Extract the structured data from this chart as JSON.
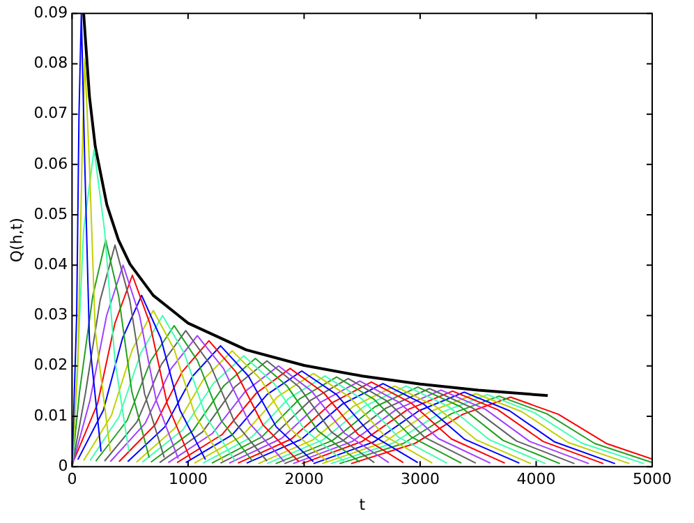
{
  "chart_data": {
    "type": "line",
    "xlabel": "t",
    "ylabel": "Q(h,t)",
    "xlim": [
      0,
      5000
    ],
    "xticks": [
      0,
      1000,
      2000,
      3000,
      4000,
      5000
    ],
    "ylim": [
      0,
      0.09
    ],
    "yticks": [
      0,
      0.01,
      0.02,
      0.03,
      0.04,
      0.05,
      0.06,
      0.07,
      0.08,
      0.09
    ],
    "grid": false,
    "legend": false,
    "marker": "none",
    "line_style": "solid",
    "series": [
      {
        "color": "#0000ff",
        "x": [
          0,
          40,
          60,
          80,
          110,
          150,
          250
        ],
        "values": [
          0,
          0.03,
          0.07,
          0.09,
          0.06,
          0.025,
          0.003
        ]
      },
      {
        "color": "#c0d000",
        "x": [
          0,
          50,
          85,
          110,
          150,
          200,
          330
        ],
        "values": [
          0,
          0.02,
          0.06,
          0.081,
          0.06,
          0.027,
          0.003
        ]
      },
      {
        "color": "#40ffb0",
        "x": [
          0,
          10,
          100,
          190,
          280,
          370,
          490
        ],
        "values": [
          0,
          0.002,
          0.047,
          0.063,
          0.047,
          0.021,
          0.003
        ]
      },
      {
        "color": "#20a020",
        "x": [
          0,
          65,
          178,
          290,
          402,
          515,
          665
        ],
        "values": [
          0,
          0.0149,
          0.0338,
          0.045,
          0.0338,
          0.0149,
          0.0018
        ]
      },
      {
        "color": "#606060",
        "x": [
          0,
          115,
          242,
          370,
          498,
          625,
          795
        ],
        "values": [
          0,
          0.0145,
          0.033,
          0.044,
          0.033,
          0.0145,
          0.0018
        ]
      },
      {
        "color": "#a040ff",
        "x": [
          0,
          155,
          298,
          440,
          582,
          725,
          915
        ],
        "values": [
          0,
          0.0132,
          0.03,
          0.04,
          0.03,
          0.0132,
          0.0016
        ]
      },
      {
        "color": "#ff0000",
        "x": [
          20,
          220,
          370,
          520,
          670,
          820,
          1020
        ],
        "values": [
          0.0015,
          0.0125,
          0.0285,
          0.038,
          0.0285,
          0.0125,
          0.0015
        ]
      },
      {
        "color": "#0000ff",
        "x": [
          50,
          270,
          435,
          600,
          765,
          930,
          1150
        ],
        "values": [
          0.0014,
          0.0112,
          0.0255,
          0.034,
          0.0255,
          0.0112,
          0.0014
        ]
      },
      {
        "color": "#c0d000",
        "x": [
          100,
          340,
          520,
          700,
          880,
          1060,
          1300
        ],
        "values": [
          0.0012,
          0.0102,
          0.0233,
          0.031,
          0.0233,
          0.0102,
          0.0012
        ]
      },
      {
        "color": "#40ffb0",
        "x": [
          155,
          405,
          592,
          780,
          968,
          1155,
          1405
        ],
        "values": [
          0.0012,
          0.0099,
          0.0225,
          0.03,
          0.0225,
          0.0099,
          0.0012
        ]
      },
      {
        "color": "#20a020",
        "x": [
          205,
          475,
          678,
          880,
          1082,
          1285,
          1555
        ],
        "values": [
          0.0011,
          0.0092,
          0.021,
          0.028,
          0.021,
          0.0092,
          0.0011
        ]
      },
      {
        "color": "#606060",
        "x": [
          280,
          560,
          770,
          980,
          1190,
          1400,
          1680
        ],
        "values": [
          0.0011,
          0.0089,
          0.0203,
          0.027,
          0.0203,
          0.0089,
          0.0011
        ]
      },
      {
        "color": "#a040ff",
        "x": [
          330,
          630,
          855,
          1080,
          1305,
          1530,
          1830
        ],
        "values": [
          0.001,
          0.0086,
          0.0195,
          0.026,
          0.0195,
          0.0086,
          0.001
        ]
      },
      {
        "color": "#ff0000",
        "x": [
          405,
          715,
          948,
          1180,
          1412,
          1645,
          1955
        ],
        "values": [
          0.001,
          0.0083,
          0.0188,
          0.025,
          0.0188,
          0.0083,
          0.001
        ]
      },
      {
        "color": "#0000ff",
        "x": [
          480,
          800,
          1040,
          1280,
          1520,
          1760,
          2080
        ],
        "values": [
          0.001,
          0.0079,
          0.018,
          0.024,
          0.018,
          0.0079,
          0.001
        ]
      },
      {
        "color": "#c0d000",
        "x": [
          555,
          885,
          1132,
          1380,
          1628,
          1875,
          2205
        ],
        "values": [
          0.0009,
          0.0076,
          0.0173,
          0.023,
          0.0173,
          0.0076,
          0.0009
        ]
      },
      {
        "color": "#40ffb0",
        "x": [
          605,
          955,
          1218,
          1480,
          1742,
          2005,
          2355
        ],
        "values": [
          0.0009,
          0.0073,
          0.0165,
          0.022,
          0.0165,
          0.0073,
          0.0009
        ]
      },
      {
        "color": "#20a020",
        "x": [
          680,
          1040,
          1310,
          1580,
          1850,
          2120,
          2480
        ],
        "values": [
          0.0009,
          0.0071,
          0.0161,
          0.0215,
          0.0161,
          0.0071,
          0.0009
        ]
      },
      {
        "color": "#606060",
        "x": [
          755,
          1125,
          1402,
          1680,
          1958,
          2235,
          2605
        ],
        "values": [
          0.0008,
          0.0069,
          0.0158,
          0.021,
          0.0158,
          0.0069,
          0.0008
        ]
      },
      {
        "color": "#a040ff",
        "x": [
          830,
          1210,
          1495,
          1780,
          2065,
          2350,
          2730
        ],
        "values": [
          0.0008,
          0.0066,
          0.015,
          0.02,
          0.015,
          0.0066,
          0.0008
        ]
      },
      {
        "color": "#ff0000",
        "x": [
          905,
          1295,
          1588,
          1880,
          2172,
          2465,
          2855
        ],
        "values": [
          0.0008,
          0.0064,
          0.0146,
          0.0195,
          0.0146,
          0.0064,
          0.0008
        ]
      },
      {
        "color": "#0000ff",
        "x": [
          980,
          1380,
          1680,
          1980,
          2280,
          2580,
          2980
        ],
        "values": [
          0.0008,
          0.0063,
          0.0143,
          0.019,
          0.0143,
          0.0063,
          0.0008
        ]
      },
      {
        "color": "#c0d000",
        "x": [
          1055,
          1465,
          1772,
          2080,
          2388,
          2695,
          3105
        ],
        "values": [
          0.0007,
          0.0061,
          0.0139,
          0.0185,
          0.0139,
          0.0061,
          0.0007
        ]
      },
      {
        "color": "#40ffb0",
        "x": [
          1130,
          1550,
          1865,
          2180,
          2495,
          2810,
          3230
        ],
        "values": [
          0.0007,
          0.0059,
          0.0135,
          0.018,
          0.0135,
          0.0059,
          0.0007
        ]
      },
      {
        "color": "#20a020",
        "x": [
          1205,
          1635,
          1958,
          2280,
          2602,
          2925,
          3355
        ],
        "values": [
          0.0007,
          0.0059,
          0.0134,
          0.0178,
          0.0134,
          0.0059,
          0.0007
        ]
      },
      {
        "color": "#606060",
        "x": [
          1280,
          1720,
          2050,
          2380,
          2710,
          3040,
          3480
        ],
        "values": [
          0.0007,
          0.0058,
          0.0131,
          0.0175,
          0.0131,
          0.0058,
          0.0007
        ]
      },
      {
        "color": "#a040ff",
        "x": [
          1355,
          1805,
          2142,
          2480,
          2818,
          3155,
          3605
        ],
        "values": [
          0.0007,
          0.0056,
          0.0128,
          0.017,
          0.0128,
          0.0056,
          0.0007
        ]
      },
      {
        "color": "#ff0000",
        "x": [
          1430,
          1890,
          2235,
          2580,
          2925,
          3270,
          3730
        ],
        "values": [
          0.0007,
          0.0055,
          0.0126,
          0.0168,
          0.0126,
          0.0055,
          0.0007
        ]
      },
      {
        "color": "#0000ff",
        "x": [
          1505,
          1975,
          2328,
          2680,
          3032,
          3385,
          3855
        ],
        "values": [
          0.0007,
          0.0054,
          0.0124,
          0.0165,
          0.0124,
          0.0054,
          0.0007
        ]
      },
      {
        "color": "#c0d000",
        "x": [
          1605,
          2075,
          2428,
          2780,
          3132,
          3485,
          3955
        ],
        "values": [
          0.0006,
          0.0053,
          0.012,
          0.016,
          0.012,
          0.0053,
          0.0006
        ]
      },
      {
        "color": "#40ffb0",
        "x": [
          1680,
          2160,
          2520,
          2880,
          3240,
          3600,
          4080
        ],
        "values": [
          0.0006,
          0.0053,
          0.012,
          0.016,
          0.012,
          0.0053,
          0.0006
        ]
      },
      {
        "color": "#20a020",
        "x": [
          1755,
          2245,
          2612,
          2980,
          3348,
          3715,
          4205
        ],
        "values": [
          0.0006,
          0.0052,
          0.0119,
          0.0158,
          0.0119,
          0.0052,
          0.0006
        ]
      },
      {
        "color": "#606060",
        "x": [
          1830,
          2330,
          2705,
          3080,
          3455,
          3830,
          4330
        ],
        "values": [
          0.0006,
          0.0051,
          0.0116,
          0.0155,
          0.0116,
          0.0051,
          0.0006
        ]
      },
      {
        "color": "#a040ff",
        "x": [
          1905,
          2415,
          2798,
          3180,
          3562,
          3945,
          4455
        ],
        "values": [
          0.0006,
          0.005,
          0.0114,
          0.0152,
          0.0114,
          0.005,
          0.0006
        ]
      },
      {
        "color": "#ff0000",
        "x": [
          1980,
          2500,
          2890,
          3280,
          3670,
          4060,
          4580
        ],
        "values": [
          0.0006,
          0.005,
          0.0113,
          0.015,
          0.0113,
          0.005,
          0.0006
        ]
      },
      {
        "color": "#0000ff",
        "x": [
          2080,
          2600,
          2990,
          3380,
          3770,
          4160,
          4680
        ],
        "values": [
          0.0006,
          0.0049,
          0.0111,
          0.0148,
          0.0111,
          0.0049,
          0.0006
        ]
      },
      {
        "color": "#c0d000",
        "x": [
          2155,
          2685,
          3082,
          3480,
          3878,
          4275,
          4805
        ],
        "values": [
          0.0006,
          0.0048,
          0.0109,
          0.0145,
          0.0109,
          0.0048,
          0.0006
        ]
      },
      {
        "color": "#40ffb0",
        "x": [
          2230,
          2770,
          3175,
          3580,
          3985,
          4390,
          4930
        ],
        "values": [
          0.0006,
          0.0047,
          0.0107,
          0.0143,
          0.0107,
          0.0047,
          0.0006
        ]
      },
      {
        "color": "#20a020",
        "x": [
          2305,
          2855,
          3268,
          3680,
          4092,
          4505,
          5000
        ],
        "values": [
          0.0006,
          0.0046,
          0.0105,
          0.014,
          0.0105,
          0.0046,
          0.0008
        ]
      },
      {
        "color": "#ff0000",
        "x": [
          2405,
          2955,
          3368,
          3780,
          4192,
          4605,
          5000
        ],
        "values": [
          0.0006,
          0.0046,
          0.0104,
          0.0138,
          0.0104,
          0.0046,
          0.0015
        ]
      },
      {
        "color": "#000000",
        "x": [
          100,
          150,
          200,
          300,
          400,
          500,
          700,
          1000,
          1500,
          2000,
          2500,
          3000,
          3500,
          4100
        ],
        "values": [
          0.09,
          0.0735,
          0.0636,
          0.052,
          0.045,
          0.0402,
          0.034,
          0.0285,
          0.0232,
          0.0201,
          0.018,
          0.0164,
          0.0152,
          0.0141
        ]
      }
    ]
  }
}
